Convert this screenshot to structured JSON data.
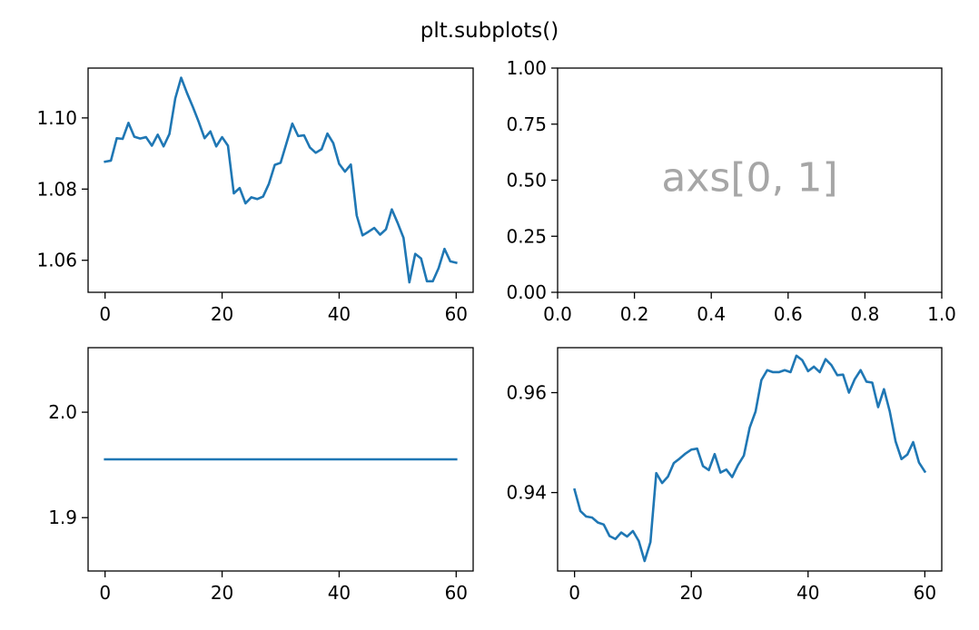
{
  "figure": {
    "suptitle": "plt.subplots()"
  },
  "colors": {
    "series": "#1f77b4",
    "annotation": "#a6a6a6"
  },
  "chart_data": [
    {
      "id": "axs00",
      "type": "line",
      "xlim": [
        -2.9,
        62.9
      ],
      "ylim": [
        1.051,
        1.114
      ],
      "xticks": [
        0,
        20,
        40,
        60
      ],
      "xtick_labels": [
        "0",
        "20",
        "40",
        "60"
      ],
      "yticks": [
        1.06,
        1.08,
        1.1
      ],
      "ytick_labels": [
        "1.06",
        "1.08",
        "1.10"
      ],
      "series": [
        {
          "x": [
            0,
            1,
            2,
            3,
            4,
            5,
            6,
            7,
            8,
            9,
            10,
            11,
            12,
            13,
            14,
            15,
            16,
            17,
            18,
            19,
            20,
            21,
            22,
            23,
            24,
            25,
            26,
            27,
            28,
            29,
            30,
            31,
            32,
            33,
            34,
            35,
            36,
            37,
            38,
            39,
            40,
            41,
            42,
            43,
            44,
            45,
            46,
            47,
            48,
            49,
            50,
            51,
            52,
            53,
            54,
            55,
            56,
            57,
            58,
            59,
            60
          ],
          "values": [
            1.0877,
            1.088,
            1.0943,
            1.0941,
            1.0986,
            1.0947,
            1.0942,
            1.0946,
            1.0922,
            1.0953,
            1.092,
            1.0955,
            1.1055,
            1.1113,
            1.107,
            1.1031,
            1.0989,
            1.0943,
            1.0962,
            1.092,
            1.0946,
            1.0922,
            1.0788,
            1.0803,
            1.076,
            1.0777,
            1.0772,
            1.0779,
            1.0815,
            1.0868,
            1.0874,
            1.0929,
            1.0984,
            1.0949,
            1.0951,
            1.0917,
            1.0902,
            1.0912,
            1.0956,
            1.0929,
            1.0871,
            1.0849,
            1.0869,
            1.0726,
            1.067,
            1.068,
            1.0691,
            1.0672,
            1.0687,
            1.0743,
            1.0705,
            1.0663,
            1.0538,
            1.0618,
            1.0605,
            1.0541,
            1.0541,
            1.0578,
            1.0632,
            1.0597,
            1.0593
          ]
        }
      ]
    },
    {
      "id": "axs01",
      "type": "line",
      "xlim": [
        0,
        1
      ],
      "ylim": [
        0,
        1
      ],
      "xticks": [
        0,
        0.2,
        0.4,
        0.6,
        0.8,
        1.0
      ],
      "xtick_labels": [
        "0.0",
        "0.2",
        "0.4",
        "0.6",
        "0.8",
        "1.0"
      ],
      "yticks": [
        0,
        0.25,
        0.5,
        0.75,
        1.0
      ],
      "ytick_labels": [
        "0.00",
        "0.25",
        "0.50",
        "0.75",
        "1.00"
      ],
      "annotations": [
        {
          "text": "axs[0, 1]",
          "x": 0.5,
          "y": 0.5
        }
      ],
      "series": []
    },
    {
      "id": "axs10",
      "type": "line",
      "xlim": [
        -2.9,
        62.9
      ],
      "ylim": [
        1.8494,
        2.0612
      ],
      "xticks": [
        0,
        20,
        40,
        60
      ],
      "xtick_labels": [
        "0",
        "20",
        "40",
        "60"
      ],
      "yticks": [
        1.9,
        2.0
      ],
      "ytick_labels": [
        "1.9",
        "2.0"
      ],
      "series": [
        {
          "x": [
            0,
            60
          ],
          "values": [
            1.9553,
            1.9553
          ]
        }
      ]
    },
    {
      "id": "axs11",
      "type": "line",
      "xlim": [
        -2.9,
        62.9
      ],
      "ylim": [
        0.9243,
        0.969
      ],
      "xticks": [
        0,
        20,
        40,
        60
      ],
      "xtick_labels": [
        "0",
        "20",
        "40",
        "60"
      ],
      "yticks": [
        0.94,
        0.96
      ],
      "ytick_labels": [
        "0.94",
        "0.96"
      ],
      "series": [
        {
          "x": [
            0,
            1,
            2,
            3,
            4,
            5,
            6,
            7,
            8,
            9,
            10,
            11,
            12,
            13,
            14,
            15,
            16,
            17,
            18,
            19,
            20,
            21,
            22,
            23,
            24,
            25,
            26,
            27,
            28,
            29,
            30,
            31,
            32,
            33,
            34,
            35,
            36,
            37,
            38,
            39,
            40,
            41,
            42,
            43,
            44,
            45,
            46,
            47,
            48,
            49,
            50,
            51,
            52,
            53,
            54,
            55,
            56,
            57,
            58,
            59,
            60
          ],
          "values": [
            0.9406,
            0.9363,
            0.9352,
            0.935,
            0.934,
            0.9336,
            0.9313,
            0.9307,
            0.932,
            0.9312,
            0.9323,
            0.9303,
            0.9263,
            0.9301,
            0.9439,
            0.9419,
            0.9432,
            0.9459,
            0.9468,
            0.9478,
            0.9486,
            0.9488,
            0.9453,
            0.9445,
            0.9477,
            0.944,
            0.9446,
            0.9431,
            0.9455,
            0.9474,
            0.953,
            0.9562,
            0.9625,
            0.9645,
            0.9641,
            0.9641,
            0.9645,
            0.9641,
            0.9674,
            0.9665,
            0.9643,
            0.9652,
            0.9641,
            0.9667,
            0.9655,
            0.9635,
            0.9636,
            0.96,
            0.9627,
            0.9645,
            0.9622,
            0.962,
            0.9571,
            0.9607,
            0.9562,
            0.9502,
            0.9467,
            0.9476,
            0.9501,
            0.946,
            0.9442
          ]
        }
      ]
    }
  ]
}
